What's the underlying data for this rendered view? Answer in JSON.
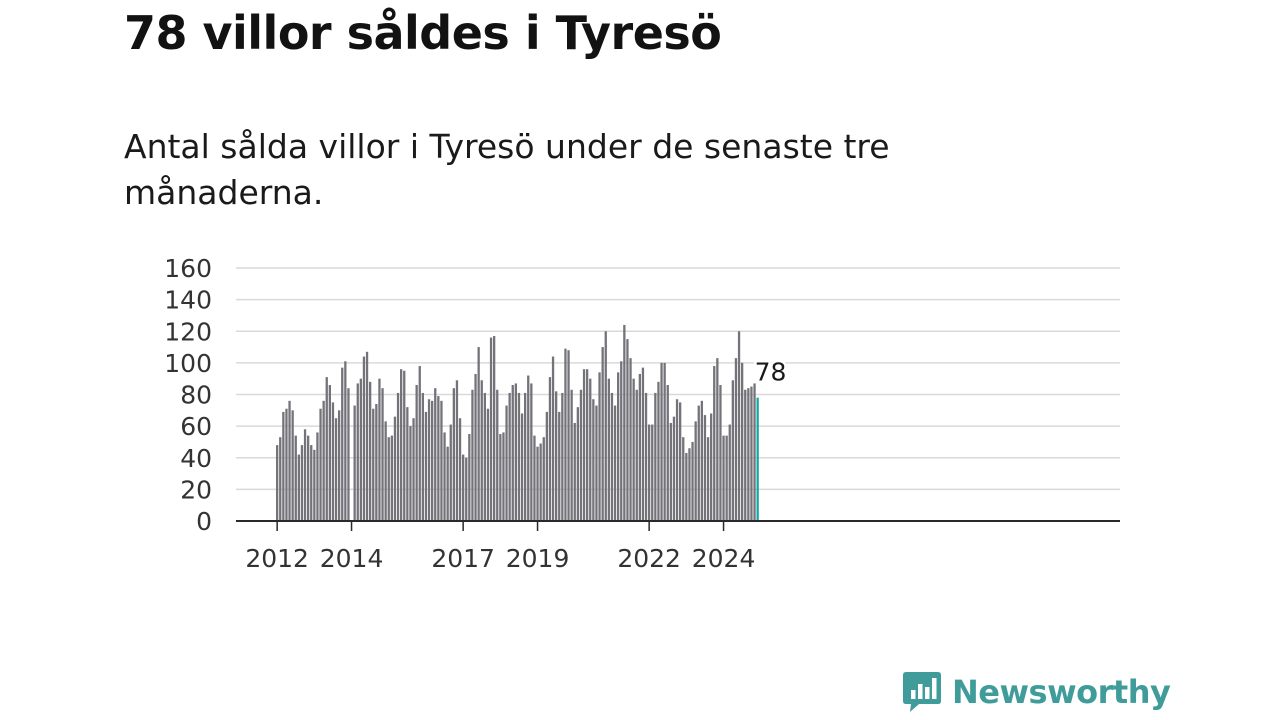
{
  "title": "78 villor såldes i Tyresö",
  "subtitle": "Antal sålda villor i Tyresö under de senaste tre månaderna.",
  "brand": {
    "name": "Newsworthy",
    "color": "#3f9c9a",
    "icon": "newsworthy-bar-chart-icon"
  },
  "chart_data": {
    "type": "bar",
    "title": "78 villor såldes i Tyresö",
    "subtitle": "Antal sålda villor i Tyresö under de senaste tre månaderna.",
    "xlabel": "",
    "ylabel": "",
    "ylim": [
      0,
      160
    ],
    "yticks": [
      0,
      20,
      40,
      60,
      80,
      100,
      120,
      140,
      160
    ],
    "xticks": [
      "2012",
      "2014",
      "2017",
      "2019",
      "2022",
      "2024"
    ],
    "grid": true,
    "bar_color": "#74737a",
    "highlight_color": "#14a8a2",
    "highlight_label": "78",
    "start": "2012-01",
    "values": [
      48,
      53,
      69,
      71,
      76,
      70,
      54,
      42,
      48,
      58,
      54,
      48,
      45,
      56,
      71,
      76,
      91,
      86,
      75,
      65,
      70,
      97,
      101,
      84,
      0,
      73,
      87,
      90,
      104,
      107,
      88,
      71,
      74,
      90,
      84,
      63,
      53,
      54,
      66,
      81,
      96,
      95,
      72,
      60,
      65,
      86,
      98,
      81,
      69,
      77,
      76,
      84,
      79,
      76,
      56,
      47,
      61,
      84,
      89,
      65,
      42,
      40,
      55,
      83,
      93,
      110,
      89,
      81,
      71,
      116,
      117,
      83,
      55,
      56,
      73,
      81,
      86,
      87,
      81,
      68,
      81,
      92,
      87,
      54,
      47,
      49,
      53,
      69,
      91,
      104,
      82,
      69,
      81,
      109,
      108,
      83,
      62,
      72,
      83,
      96,
      96,
      90,
      77,
      73,
      94,
      110,
      120,
      90,
      81,
      73,
      94,
      101,
      124,
      115,
      103,
      90,
      83,
      93,
      97,
      81,
      61,
      61,
      81,
      88,
      100,
      100,
      86,
      62,
      66,
      77,
      75,
      53,
      43,
      46,
      50,
      63,
      73,
      76,
      67,
      53,
      68,
      98,
      103,
      86,
      54,
      54,
      61,
      89,
      103,
      120,
      100,
      83,
      84,
      85,
      87,
      78
    ]
  }
}
